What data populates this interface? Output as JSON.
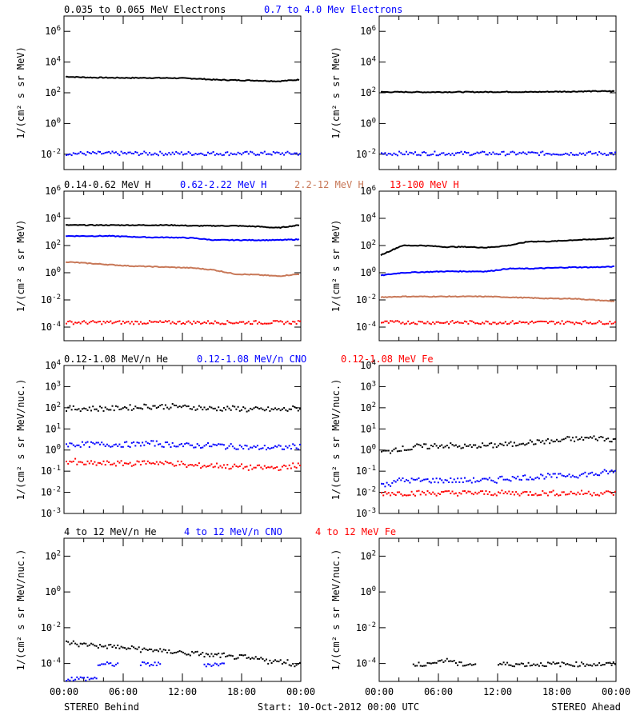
{
  "colors": {
    "black": "#000000",
    "blue": "#0000ff",
    "tan": "#c87858",
    "red": "#ff0000"
  },
  "xaxis": {
    "ticks": [
      "00:00",
      "06:00",
      "12:00",
      "18:00",
      "00:00"
    ],
    "left_caption": "STEREO Behind",
    "center_caption": "Start: 10-Oct-2012 00:00 UTC",
    "right_caption": "STEREO Ahead"
  },
  "chart_data": [
    {
      "type": "scatter",
      "row_labels": [
        {
          "text": "0.035 to 0.065 MeV Electrons",
          "color": "#000000"
        },
        {
          "text": "0.7 to 4.0 Mev Electrons",
          "color": "#0000ff"
        }
      ],
      "ylabel": "1/(cm² s sr MeV)",
      "yscale": "log",
      "yticks": [
        {
          "base": "10",
          "exp": "-2",
          "v": -2
        },
        {
          "base": "10",
          "exp": "0",
          "v": 0
        },
        {
          "base": "10",
          "exp": "2",
          "v": 2
        },
        {
          "base": "10",
          "exp": "4",
          "v": 4
        },
        {
          "base": "10",
          "exp": "6",
          "v": 6
        }
      ],
      "ylim_log10": [
        -3,
        7
      ],
      "panels": [
        {
          "name": "STEREO Behind",
          "series": [
            {
              "name": "0.035 to 0.065 MeV Electrons",
              "color": "#000000",
              "style": "line",
              "log10_values": [
                3.05,
                3.0,
                2.98,
                2.97,
                2.97,
                2.96,
                2.93,
                2.85,
                2.82,
                2.8,
                2.75,
                2.85
              ]
            },
            {
              "name": "0.7 to 4.0 Mev Electrons",
              "color": "#0000ff",
              "style": "dots",
              "log10_values": [
                -1.9,
                -1.9,
                -1.9,
                -1.9,
                -1.9,
                -1.9,
                -1.9,
                -1.9,
                -1.9,
                -1.9,
                -1.9,
                -1.9
              ]
            }
          ]
        },
        {
          "name": "STEREO Ahead",
          "series": [
            {
              "name": "0.035 to 0.065 MeV Electrons",
              "color": "#000000",
              "style": "line",
              "log10_values": [
                2.05,
                2.05,
                2.04,
                2.05,
                2.05,
                2.05,
                2.06,
                2.05,
                2.07,
                2.08,
                2.1,
                2.1
              ]
            },
            {
              "name": "0.7 to 4.0 Mev Electrons",
              "color": "#0000ff",
              "style": "dots",
              "log10_values": [
                -1.9,
                -1.9,
                -1.9,
                -1.9,
                -1.9,
                -1.9,
                -1.9,
                -1.9,
                -1.9,
                -1.9,
                -1.9,
                -1.9
              ]
            }
          ]
        }
      ]
    },
    {
      "type": "scatter",
      "row_labels": [
        {
          "text": "0.14-0.62 MeV H",
          "color": "#000000"
        },
        {
          "text": "0.62-2.22 MeV H",
          "color": "#0000ff"
        },
        {
          "text": "2.2-12 MeV H",
          "color": "#c87858"
        },
        {
          "text": "13-100 MeV H",
          "color": "#ff0000"
        }
      ],
      "ylabel": "1/(cm² s sr MeV)",
      "yscale": "log",
      "yticks": [
        {
          "base": "10",
          "exp": "-4",
          "v": -4
        },
        {
          "base": "10",
          "exp": "-2",
          "v": -2
        },
        {
          "base": "10",
          "exp": "0",
          "v": 0
        },
        {
          "base": "10",
          "exp": "2",
          "v": 2
        },
        {
          "base": "10",
          "exp": "4",
          "v": 4
        },
        {
          "base": "10",
          "exp": "6",
          "v": 6
        }
      ],
      "ylim_log10": [
        -5,
        6
      ],
      "panels": [
        {
          "name": "STEREO Behind",
          "series": [
            {
              "name": "0.14-0.62 MeV H",
              "color": "#000000",
              "style": "line",
              "log10_values": [
                3.5,
                3.5,
                3.5,
                3.5,
                3.5,
                3.5,
                3.45,
                3.45,
                3.45,
                3.4,
                3.3,
                3.5
              ]
            },
            {
              "name": "0.62-2.22 MeV H",
              "color": "#0000ff",
              "style": "line",
              "log10_values": [
                2.7,
                2.7,
                2.7,
                2.65,
                2.6,
                2.6,
                2.55,
                2.4,
                2.4,
                2.4,
                2.4,
                2.45
              ]
            },
            {
              "name": "2.2-12 MeV H",
              "color": "#c87858",
              "style": "line",
              "log10_values": [
                0.8,
                0.7,
                0.6,
                0.5,
                0.45,
                0.4,
                0.35,
                0.2,
                -0.1,
                -0.15,
                -0.25,
                -0.1
              ]
            },
            {
              "name": "13-100 MeV H",
              "color": "#ff0000",
              "style": "dots",
              "log10_values": [
                -3.6,
                -3.6,
                -3.6,
                -3.6,
                -3.6,
                -3.6,
                -3.6,
                -3.6,
                -3.6,
                -3.6,
                -3.6,
                -3.6
              ]
            }
          ]
        },
        {
          "name": "STEREO Ahead",
          "series": [
            {
              "name": "0.14-0.62 MeV H",
              "color": "#000000",
              "style": "line",
              "log10_values": [
                1.3,
                2.0,
                2.0,
                1.9,
                1.9,
                1.85,
                2.0,
                2.3,
                2.3,
                2.4,
                2.45,
                2.55
              ]
            },
            {
              "name": "0.62-2.22 MeV H",
              "color": "#0000ff",
              "style": "line",
              "log10_values": [
                -0.2,
                0.0,
                0.05,
                0.1,
                0.1,
                0.1,
                0.3,
                0.3,
                0.35,
                0.4,
                0.4,
                0.45
              ]
            },
            {
              "name": "2.2-12 MeV H",
              "color": "#c87858",
              "style": "line",
              "log10_values": [
                -1.8,
                -1.75,
                -1.75,
                -1.75,
                -1.75,
                -1.75,
                -1.8,
                -1.85,
                -1.9,
                -1.9,
                -2.0,
                -2.1
              ]
            },
            {
              "name": "13-100 MeV H",
              "color": "#ff0000",
              "style": "dots",
              "log10_values": [
                -3.6,
                -3.6,
                -3.6,
                -3.6,
                -3.6,
                -3.6,
                -3.6,
                -3.6,
                -3.6,
                -3.6,
                -3.6,
                -3.6
              ]
            }
          ]
        }
      ]
    },
    {
      "type": "scatter",
      "row_labels": [
        {
          "text": "0.12-1.08 MeV/n He",
          "color": "#000000"
        },
        {
          "text": "0.12-1.08 MeV/n CNO",
          "color": "#0000ff"
        },
        {
          "text": "0.12-1.08 MeV Fe",
          "color": "#ff0000"
        }
      ],
      "ylabel": "1/(cm² s sr MeV/nuc.)",
      "yscale": "log",
      "yticks": [
        {
          "base": "10",
          "exp": "-3",
          "v": -3
        },
        {
          "base": "10",
          "exp": "-2",
          "v": -2
        },
        {
          "base": "10",
          "exp": "-1",
          "v": -1
        },
        {
          "base": "10",
          "exp": "0",
          "v": 0
        },
        {
          "base": "10",
          "exp": "1",
          "v": 1
        },
        {
          "base": "10",
          "exp": "2",
          "v": 2
        },
        {
          "base": "10",
          "exp": "3",
          "v": 3
        },
        {
          "base": "10",
          "exp": "4",
          "v": 4
        }
      ],
      "ylim_log10": [
        -3,
        4
      ],
      "panels": [
        {
          "name": "STEREO Behind",
          "series": [
            {
              "name": "0.12-1.08 MeV/n He",
              "color": "#000000",
              "style": "dots",
              "log10_values": [
                2.0,
                2.0,
                2.0,
                2.05,
                2.1,
                2.1,
                2.05,
                2.0,
                2.0,
                1.95,
                1.95,
                2.0
              ]
            },
            {
              "name": "0.12-1.08 MeV/n CNO",
              "color": "#0000ff",
              "style": "dots",
              "log10_values": [
                0.3,
                0.3,
                0.3,
                0.3,
                0.35,
                0.3,
                0.25,
                0.25,
                0.2,
                0.15,
                0.15,
                0.2
              ]
            },
            {
              "name": "0.12-1.08 MeV Fe",
              "color": "#ff0000",
              "style": "dots",
              "log10_values": [
                -0.5,
                -0.6,
                -0.6,
                -0.6,
                -0.55,
                -0.6,
                -0.7,
                -0.7,
                -0.75,
                -0.8,
                -0.8,
                -0.7
              ]
            }
          ]
        },
        {
          "name": "STEREO Ahead",
          "series": [
            {
              "name": "0.12-1.08 MeV/n He",
              "color": "#000000",
              "style": "dots",
              "log10_values": [
                -0.05,
                0.1,
                0.2,
                0.25,
                0.2,
                0.25,
                0.3,
                0.4,
                0.45,
                0.55,
                0.6,
                0.55
              ]
            },
            {
              "name": "0.12-1.08 MeV/n CNO",
              "color": "#0000ff",
              "style": "dots",
              "log10_values": [
                -1.6,
                -1.4,
                -1.4,
                -1.4,
                -1.4,
                -1.4,
                -1.3,
                -1.25,
                -1.2,
                -1.15,
                -1.1,
                -1.0
              ]
            },
            {
              "name": "0.12-1.08 MeV Fe",
              "color": "#ff0000",
              "style": "dots",
              "log10_values": [
                -2.0,
                -2.0,
                -2.0,
                -2.0,
                -2.0,
                -2.0,
                -2.0,
                -2.0,
                -2.0,
                -2.0,
                -2.0,
                -2.0
              ]
            }
          ]
        }
      ]
    },
    {
      "type": "scatter",
      "row_labels": [
        {
          "text": "4 to 12 MeV/n He",
          "color": "#000000"
        },
        {
          "text": "4 to 12 MeV/n CNO",
          "color": "#0000ff"
        },
        {
          "text": "4 to 12 MeV Fe",
          "color": "#ff0000"
        }
      ],
      "ylabel": "1/(cm² s sr MeV/nuc.)",
      "yscale": "log",
      "yticks": [
        {
          "base": "10",
          "exp": "-4",
          "v": -4
        },
        {
          "base": "10",
          "exp": "-2",
          "v": -2
        },
        {
          "base": "10",
          "exp": "0",
          "v": 0
        },
        {
          "base": "10",
          "exp": "2",
          "v": 2
        }
      ],
      "ylim_log10": [
        -5,
        3
      ],
      "panels": [
        {
          "name": "STEREO Behind",
          "series": [
            {
              "name": "4 to 12 MeV/n He",
              "color": "#000000",
              "style": "dots",
              "log10_values": [
                -2.8,
                -2.9,
                -3.0,
                -3.1,
                -3.2,
                -3.3,
                -3.4,
                -3.5,
                -3.6,
                -3.7,
                -3.85,
                -4.0
              ]
            },
            {
              "name": "4 to 12 MeV/n CNO",
              "color": "#0000ff",
              "style": "dots",
              "log10_values": [
                -4.8,
                -4.8,
                -4.0,
                null,
                -4.0,
                null,
                null,
                -4.0,
                null,
                null,
                null,
                null
              ]
            }
          ]
        },
        {
          "name": "STEREO Ahead",
          "series": [
            {
              "name": "4 to 12 MeV/n He",
              "color": "#000000",
              "style": "dots",
              "log10_values": [
                null,
                null,
                -4.0,
                -3.8,
                -4.0,
                null,
                -4.0,
                -4.0,
                -4.0,
                -4.0,
                -4.0,
                -4.0
              ]
            }
          ]
        }
      ]
    }
  ]
}
